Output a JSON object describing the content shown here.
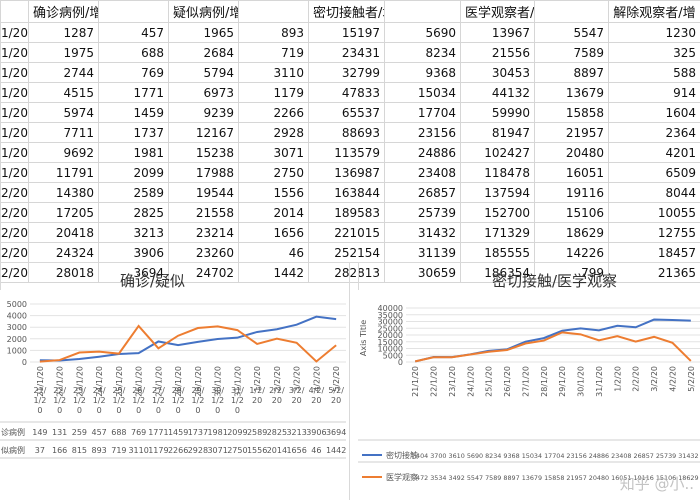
{
  "headers": [
    "",
    "确诊病例/增长数",
    "",
    "疑似病例/增长数",
    "",
    "密切接触者/增长数",
    "",
    "医学观察者/增长数",
    "",
    "解除观察者/增"
  ],
  "rows": [
    [
      "1/20",
      "1287",
      "457",
      "1965",
      "893",
      "15197",
      "5690",
      "13967",
      "5547",
      "1230"
    ],
    [
      "1/20",
      "1975",
      "688",
      "2684",
      "719",
      "23431",
      "8234",
      "21556",
      "7589",
      "325"
    ],
    [
      "1/20",
      "2744",
      "769",
      "5794",
      "3110",
      "32799",
      "9368",
      "30453",
      "8897",
      "588"
    ],
    [
      "1/20",
      "4515",
      "1771",
      "6973",
      "1179",
      "47833",
      "15034",
      "44132",
      "13679",
      "914"
    ],
    [
      "1/20",
      "5974",
      "1459",
      "9239",
      "2266",
      "65537",
      "17704",
      "59990",
      "15858",
      "1604"
    ],
    [
      "1/20",
      "7711",
      "1737",
      "12167",
      "2928",
      "88693",
      "23156",
      "81947",
      "21957",
      "2364"
    ],
    [
      "1/20",
      "9692",
      "1981",
      "15238",
      "3071",
      "113579",
      "24886",
      "102427",
      "20480",
      "4201"
    ],
    [
      "1/20",
      "11791",
      "2099",
      "17988",
      "2750",
      "136987",
      "23408",
      "118478",
      "16051",
      "6509"
    ],
    [
      "2/20",
      "14380",
      "2589",
      "19544",
      "1556",
      "163844",
      "26857",
      "137594",
      "19116",
      "8044"
    ],
    [
      "2/20",
      "17205",
      "2825",
      "21558",
      "2014",
      "189583",
      "25739",
      "152700",
      "15106",
      "10055"
    ],
    [
      "2/20",
      "20418",
      "3213",
      "23214",
      "1656",
      "221015",
      "31432",
      "171329",
      "18629",
      "12755"
    ],
    [
      "2/20",
      "24324",
      "3906",
      "23260",
      "46",
      "252154",
      "31139",
      "185555",
      "14226",
      "18457"
    ],
    [
      "2/20",
      "28018",
      "3694",
      "24702",
      "1442",
      "282813",
      "30659",
      "186354",
      "799",
      "21365"
    ]
  ],
  "chart1": {
    "title": "确诊/疑似",
    "yticks": [
      "5000",
      "4000",
      "3000",
      "2000",
      "1000",
      "0"
    ],
    "xticks": [
      "21/1/20",
      "22/1/20",
      "23/1/20",
      "24/1/20",
      "25/1/20",
      "26/1/20",
      "27/1/20",
      "28/1/20",
      "29/1/20",
      "30/1/20",
      "31/1/20",
      "1/2/20",
      "2/2/20",
      "3/2/20",
      "4/2/20",
      "5/2/20"
    ],
    "table_header": [
      "21/\n1/2\n0",
      "22/\n1/2\n0",
      "23/\n1/2\n0",
      "24/\n1/2\n0",
      "25/\n1/2\n0",
      "26/\n1/2\n0",
      "27/\n1/2\n0",
      "28/\n1/2\n0",
      "29/\n1/2\n0",
      "30/\n1/2\n0",
      "31/\n1/2\n0",
      "1/2/\n20",
      "2/2/\n20",
      "3/2/\n20",
      "4/2/\n20",
      "5/2/\n20"
    ],
    "row1_label": "诊病例",
    "row2_label": "似病例",
    "row1_text": [
      "149",
      "131",
      "259",
      "457",
      "688",
      "769",
      "1771",
      "1459",
      "1737",
      "1981",
      "2099",
      "2589",
      "2825",
      "3213",
      "3906",
      "3694"
    ],
    "row2_text": [
      "37",
      "166",
      "815",
      "893",
      "719",
      "3110",
      "1179",
      "2266",
      "2928",
      "3071",
      "2750",
      "1556",
      "2014",
      "1656",
      "46",
      "1442"
    ],
    "colors": {
      "s1": "#4472c4",
      "s2": "#ed7d31"
    }
  },
  "chart2": {
    "title": "密切接触/医学观察",
    "ylabel": "Axis Title",
    "yticks": [
      "40000",
      "35000",
      "30000",
      "25000",
      "20000",
      "15000",
      "10000",
      "5000",
      "0"
    ],
    "xticks": [
      "21/1/20",
      "22/1/20",
      "23/1/20",
      "24/1/20",
      "25/1/20",
      "26/1/20",
      "27/1/20",
      "28/1/20",
      "29/1/20",
      "30/1/20",
      "31/1/20",
      "1/2/20",
      "2/2/20",
      "3/2/20",
      "4/2/20",
      "5/2/20"
    ],
    "legend1": "密切接触",
    "legend2": "医学观察",
    "row1_text": "404 3700 3610 5690 8234 9368 15034 17704 23156 24886 23408 26857 25739 31432 31139 30659",
    "row2_text": "472 3534 3492 5547 7589 8897 13679 15858 21957 20480 16051 19116 15106 18629 14226 799",
    "colors": {
      "s1": "#4472c4",
      "s2": "#ed7d31"
    }
  },
  "watermark": "知乎 @小..",
  "chart_data": [
    {
      "type": "line",
      "title": "确诊/疑似",
      "categories": [
        "21/1/20",
        "22/1/20",
        "23/1/20",
        "24/1/20",
        "25/1/20",
        "26/1/20",
        "27/1/20",
        "28/1/20",
        "29/1/20",
        "30/1/20",
        "31/1/20",
        "1/2/20",
        "2/2/20",
        "3/2/20",
        "4/2/20",
        "5/2/20"
      ],
      "series": [
        {
          "values": [
            149,
            131,
            259,
            457,
            688,
            769,
            1771,
            1459,
            1737,
            1981,
            2099,
            2589,
            2825,
            3213,
            3906,
            3694
          ]
        },
        {
          "values": [
            37,
            166,
            815,
            893,
            719,
            3110,
            1179,
            2266,
            2928,
            3071,
            2750,
            1556,
            2014,
            1656,
            46,
            1442
          ]
        }
      ],
      "ylim": [
        0,
        5000
      ]
    },
    {
      "type": "line",
      "title": "密切接触/医学观察",
      "ylabel": "Axis Title",
      "categories": [
        "21/1/20",
        "22/1/20",
        "23/1/20",
        "24/1/20",
        "25/1/20",
        "26/1/20",
        "27/1/20",
        "28/1/20",
        "29/1/20",
        "30/1/20",
        "31/1/20",
        "1/2/20",
        "2/2/20",
        "3/2/20",
        "4/2/20",
        "5/2/20"
      ],
      "series": [
        {
          "name": "密切接触",
          "values": [
            404,
            3700,
            3610,
            5690,
            8234,
            9368,
            15034,
            17704,
            23156,
            24886,
            23408,
            26857,
            25739,
            31432,
            31139,
            30659
          ]
        },
        {
          "name": "医学观察",
          "values": [
            472,
            3534,
            3492,
            5547,
            7589,
            8897,
            13679,
            15858,
            21957,
            20480,
            16051,
            19116,
            15106,
            18629,
            14226,
            799
          ]
        }
      ],
      "ylim": [
        0,
        40000
      ]
    }
  ]
}
